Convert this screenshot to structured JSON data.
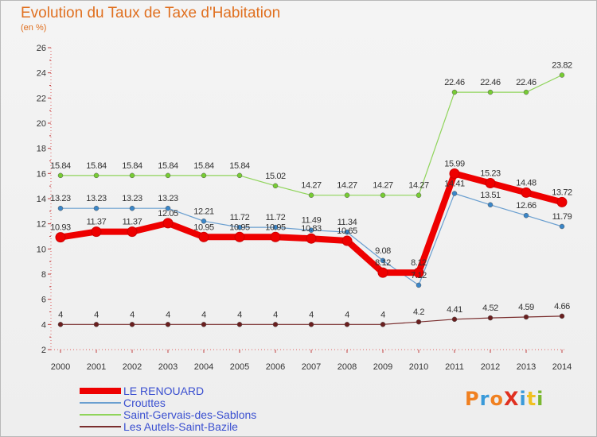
{
  "title": "Evolution du Taux de Taxe d'Habitation",
  "subtitle": "(en %)",
  "logo": {
    "text": "ProXiti",
    "letter_colors": [
      "#f08020",
      "#3a9ad9",
      "#f08020",
      "#e03020",
      "#3a9ad9",
      "#f0c020",
      "#7ab830"
    ]
  },
  "chart_data": {
    "type": "line",
    "x": [
      "2000",
      "2001",
      "2002",
      "2003",
      "2004",
      "2005",
      "2006",
      "2007",
      "2008",
      "2009",
      "2010",
      "2011",
      "2012",
      "2013",
      "2014"
    ],
    "ylim": [
      2,
      26
    ],
    "yticks": [
      "2",
      "4",
      "6",
      "8",
      "10",
      "12",
      "14",
      "16",
      "18",
      "20",
      "22",
      "24",
      "26"
    ],
    "grid": false,
    "legend_position": "bottom-left",
    "series": [
      {
        "name": "LE RENOUARD",
        "color": "#ee0000",
        "values": [
          10.93,
          11.37,
          11.37,
          12.05,
          10.95,
          10.95,
          10.95,
          10.83,
          10.65,
          8.12,
          8.12,
          15.99,
          15.23,
          14.48,
          13.72
        ],
        "labels": [
          "10.93",
          "11.37",
          "11.37",
          "12.05",
          "10.95",
          "10.95",
          "10.95",
          "10.83",
          "10.65",
          "8.12",
          "8.12",
          "15.99",
          "15.23",
          "14.48",
          "13.72"
        ]
      },
      {
        "name": "Crouttes",
        "color": "#6a9fd0",
        "values": [
          13.23,
          13.23,
          13.23,
          13.23,
          12.21,
          11.72,
          11.72,
          11.49,
          11.34,
          9.08,
          7.12,
          14.41,
          13.51,
          12.66,
          11.79
        ],
        "labels": [
          "13.23",
          "13.23",
          "13.23",
          "13.23",
          "12.21",
          "11.72",
          "11.72",
          "11.49",
          "11.34",
          "9.08",
          "7.12",
          "14.41",
          "13.51",
          "12.66",
          "11.79"
        ]
      },
      {
        "name": "Saint-Gervais-des-Sablons",
        "color": "#8fd45a",
        "values": [
          15.84,
          15.84,
          15.84,
          15.84,
          15.84,
          15.84,
          15.02,
          14.27,
          14.27,
          14.27,
          14.27,
          22.46,
          22.46,
          22.46,
          23.82
        ],
        "labels": [
          "15.84",
          "15.84",
          "15.84",
          "15.84",
          "15.84",
          "15.84",
          "15.02",
          "14.27",
          "14.27",
          "14.27",
          "14.27",
          "22.46",
          "22.46",
          "22.46",
          "23.82"
        ]
      },
      {
        "name": "Les Autels-Saint-Bazile",
        "color": "#7a2e2e",
        "values": [
          4,
          4,
          4,
          4,
          4,
          4,
          4,
          4,
          4,
          4,
          4.2,
          4.41,
          4.52,
          4.59,
          4.66
        ],
        "labels": [
          "4",
          "4",
          "4",
          "4",
          "4",
          "4",
          "4",
          "4",
          "4",
          "4",
          "4.2",
          "4.41",
          "4.52",
          "4.59",
          "4.66"
        ]
      }
    ]
  }
}
